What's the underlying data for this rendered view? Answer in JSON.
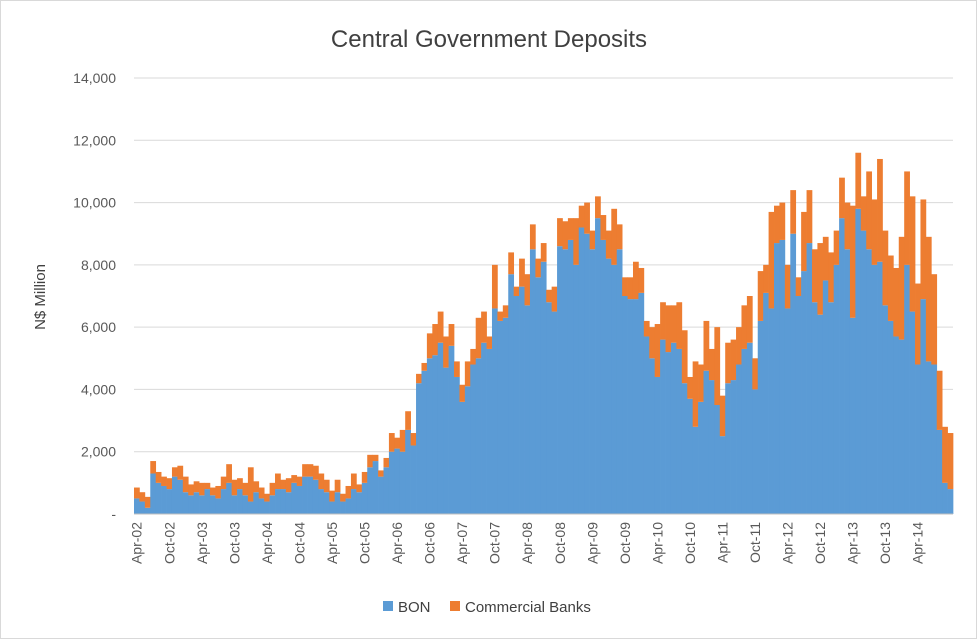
{
  "chart_data": {
    "type": "bar",
    "stacked": true,
    "title": "Central Government Deposits",
    "xlabel": "",
    "ylabel": "N$ Million",
    "ylim": [
      0,
      14000
    ],
    "y_ticks": [
      0,
      2000,
      4000,
      6000,
      8000,
      10000,
      12000,
      14000
    ],
    "y_tick_labels": [
      "-",
      "2,000",
      "4,000",
      "6,000",
      "8,000",
      "10,000",
      "12,000",
      "14,000"
    ],
    "x_tick_labels": [
      "Apr-02",
      "Oct-02",
      "Apr-03",
      "Oct-03",
      "Apr-04",
      "Oct-04",
      "Apr-05",
      "Oct-05",
      "Apr-06",
      "Oct-06",
      "Apr-07",
      "Oct-07",
      "Apr-08",
      "Oct-08",
      "Apr-09",
      "Oct-09",
      "Apr-10",
      "Oct-10",
      "Apr-11",
      "Oct-11",
      "Apr-12",
      "Oct-12",
      "Apr-13",
      "Oct-13",
      "Apr-14"
    ],
    "grid": true,
    "legend_position": "bottom",
    "series": [
      {
        "name": "BON",
        "color": "#5b9bd5",
        "values": [
          500,
          400,
          200,
          1300,
          1000,
          900,
          800,
          1200,
          1100,
          700,
          600,
          700,
          600,
          800,
          600,
          500,
          800,
          1000,
          600,
          800,
          600,
          400,
          700,
          500,
          400,
          600,
          800,
          800,
          700,
          1000,
          900,
          1200,
          1200,
          1100,
          800,
          700,
          400,
          700,
          400,
          500,
          800,
          700,
          1000,
          1500,
          1700,
          1200,
          1500,
          2000,
          2100,
          2000,
          2700,
          2200,
          4200,
          4600,
          5000,
          5100,
          5500,
          4700,
          5400,
          4400,
          3600,
          4100,
          4800,
          5000,
          5500,
          5300,
          6600,
          6200,
          6300,
          7700,
          7000,
          7300,
          6700,
          8500,
          7600,
          8100,
          6800,
          6500,
          8600,
          8500,
          8800,
          8000,
          9200,
          9000,
          8500,
          9500,
          8800,
          8200,
          8000,
          8500,
          7000,
          6900,
          6900,
          7100,
          5700,
          5000,
          4400,
          5600,
          5200,
          5500,
          5300,
          4200,
          3700,
          2800,
          3600,
          4600,
          4300,
          3500,
          2500,
          4200,
          4300,
          4800,
          5300,
          5500,
          4000,
          6200,
          7100,
          6600,
          8700,
          8800,
          6600,
          9000,
          7000,
          7800,
          8700,
          6800,
          6400,
          7500,
          6800,
          8000,
          9500,
          8500,
          6300,
          9800,
          9100,
          8500,
          8000,
          8100,
          6700,
          6200,
          5700,
          5600,
          8000,
          6500,
          4800,
          6900,
          4900,
          4800,
          2700,
          1000,
          800
        ]
      },
      {
        "name": "Commercial Banks",
        "color": "#ed7d31",
        "values": [
          350,
          300,
          350,
          400,
          350,
          300,
          350,
          300,
          450,
          500,
          350,
          350,
          400,
          200,
          250,
          400,
          400,
          600,
          500,
          350,
          400,
          1100,
          350,
          350,
          250,
          400,
          500,
          300,
          450,
          250,
          300,
          400,
          400,
          450,
          500,
          400,
          350,
          400,
          250,
          400,
          500,
          250,
          350,
          400,
          200,
          200,
          300,
          600,
          350,
          700,
          600,
          400,
          300,
          250,
          800,
          1000,
          1000,
          1000,
          700,
          500,
          550,
          800,
          500,
          1300,
          1000,
          400,
          1400,
          300,
          400,
          700,
          300,
          900,
          1000,
          800,
          600,
          600,
          400,
          800,
          900,
          900,
          700,
          1500,
          700,
          1000,
          600,
          700,
          800,
          900,
          1800,
          800,
          600,
          700,
          1200,
          800,
          500,
          1000,
          1700,
          1200,
          1500,
          1200,
          1500,
          1700,
          700,
          2100,
          1200,
          1600,
          1000,
          2500,
          1300,
          1300,
          1300,
          1200,
          1400,
          1500,
          1000,
          1600,
          900,
          3100,
          1200,
          1200,
          1400,
          1400,
          600,
          1900,
          1700,
          1700,
          2300,
          1400,
          1600,
          1100,
          1300,
          1500,
          3600,
          1800,
          1100,
          2500,
          2100,
          3300,
          2400,
          2100,
          2200,
          3300,
          3000,
          3700,
          2600,
          3200,
          4000,
          2900,
          1900,
          1800,
          1800,
          800,
          600,
          1200,
          700,
          600
        ]
      }
    ]
  }
}
